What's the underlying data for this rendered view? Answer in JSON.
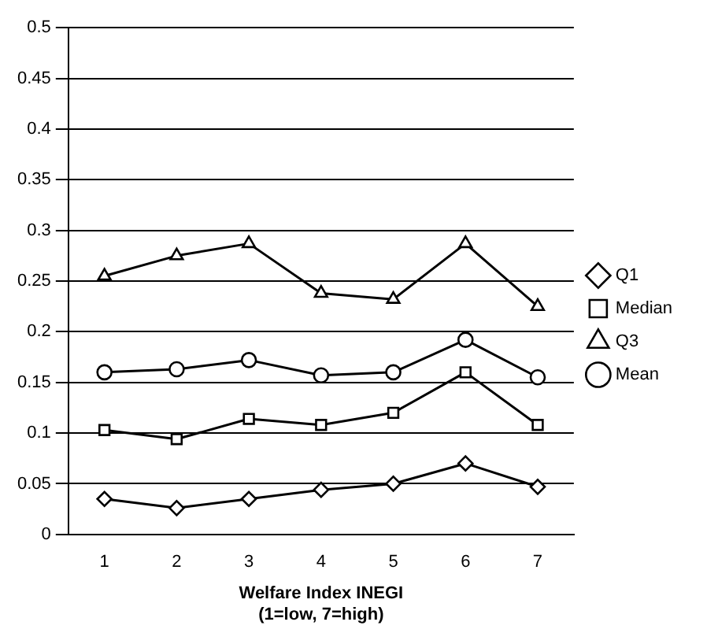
{
  "chart_data": {
    "type": "line",
    "xlabel": "Welfare Index INEGI\n(1=low, 7=high)",
    "categories": [
      "1",
      "2",
      "3",
      "4",
      "5",
      "6",
      "7"
    ],
    "series": [
      {
        "name": "Q1",
        "color": "#000000",
        "marker": "diamond",
        "values": [
          0.035,
          0.026,
          0.035,
          0.044,
          0.05,
          0.07,
          0.047
        ]
      },
      {
        "name": "Median",
        "color": "#000000",
        "marker": "square",
        "values": [
          0.103,
          0.094,
          0.114,
          0.108,
          0.12,
          0.16,
          0.108
        ]
      },
      {
        "name": "Q3",
        "color": "#000000",
        "marker": "triangle",
        "values": [
          0.255,
          0.275,
          0.287,
          0.238,
          0.232,
          0.287,
          0.225
        ]
      },
      {
        "name": "Mean",
        "color": "#000000",
        "marker": "circle",
        "values": [
          0.16,
          0.163,
          0.172,
          0.157,
          0.16,
          0.192,
          0.155
        ]
      }
    ],
    "ylim": [
      0,
      0.5
    ],
    "yticks": [
      0,
      0.05,
      0.1,
      0.15,
      0.2,
      0.25,
      0.3,
      0.35,
      0.4,
      0.45,
      0.5
    ],
    "grid": "y",
    "legend": "right"
  }
}
